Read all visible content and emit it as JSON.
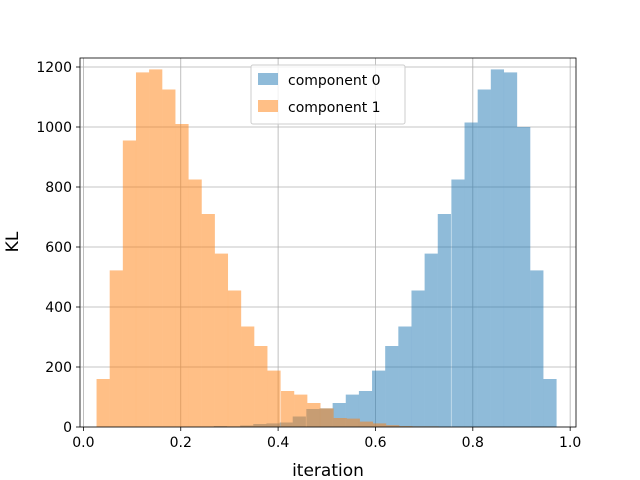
{
  "chart_data": {
    "type": "histogram",
    "xlabel": "iteration",
    "ylabel": "KL",
    "xlim": [
      -0.007,
      1.012
    ],
    "ylim": [
      0,
      1230
    ],
    "xticks": [
      0.0,
      0.2,
      0.4,
      0.6,
      0.8,
      1.0
    ],
    "xtick_labels": [
      "0.0",
      "0.2",
      "0.4",
      "0.6",
      "0.8",
      "1.0"
    ],
    "yticks": [
      0,
      200,
      400,
      600,
      800,
      1000,
      1200
    ],
    "ytick_labels": [
      "0",
      "200",
      "400",
      "600",
      "800",
      "1000",
      "1200"
    ],
    "grid": true,
    "legend_position": "upper-center",
    "series": [
      {
        "name": "component 0",
        "color": "#1f77b4",
        "alpha": 0.5,
        "bin_width": 0.0271,
        "bins_start": [
          0.268,
          0.295,
          0.322,
          0.349,
          0.376,
          0.403,
          0.43,
          0.458,
          0.485,
          0.512,
          0.539,
          0.566,
          0.593,
          0.62,
          0.647,
          0.674,
          0.701,
          0.728,
          0.756,
          0.783,
          0.81,
          0.837,
          0.864,
          0.891,
          0.918,
          0.945
        ],
        "counts": [
          3,
          2,
          5,
          10,
          12,
          15,
          35,
          60,
          62,
          80,
          108,
          120,
          188,
          270,
          335,
          455,
          578,
          710,
          825,
          1015,
          1125,
          1192,
          1182,
          1000,
          522,
          160
        ]
      },
      {
        "name": "component 1",
        "color": "#ff7f0e",
        "alpha": 0.5,
        "bin_width": 0.0271,
        "bins_start": [
          0.027,
          0.054,
          0.081,
          0.108,
          0.135,
          0.162,
          0.189,
          0.216,
          0.243,
          0.27,
          0.297,
          0.324,
          0.351,
          0.378,
          0.406,
          0.433,
          0.46,
          0.487,
          0.514,
          0.541,
          0.568,
          0.595,
          0.622,
          0.649,
          0.676,
          0.703
        ],
        "counts": [
          160,
          522,
          955,
          1182,
          1192,
          1125,
          1010,
          825,
          710,
          578,
          455,
          335,
          270,
          188,
          120,
          108,
          80,
          62,
          30,
          28,
          18,
          12,
          6,
          3,
          2,
          2
        ]
      }
    ]
  }
}
